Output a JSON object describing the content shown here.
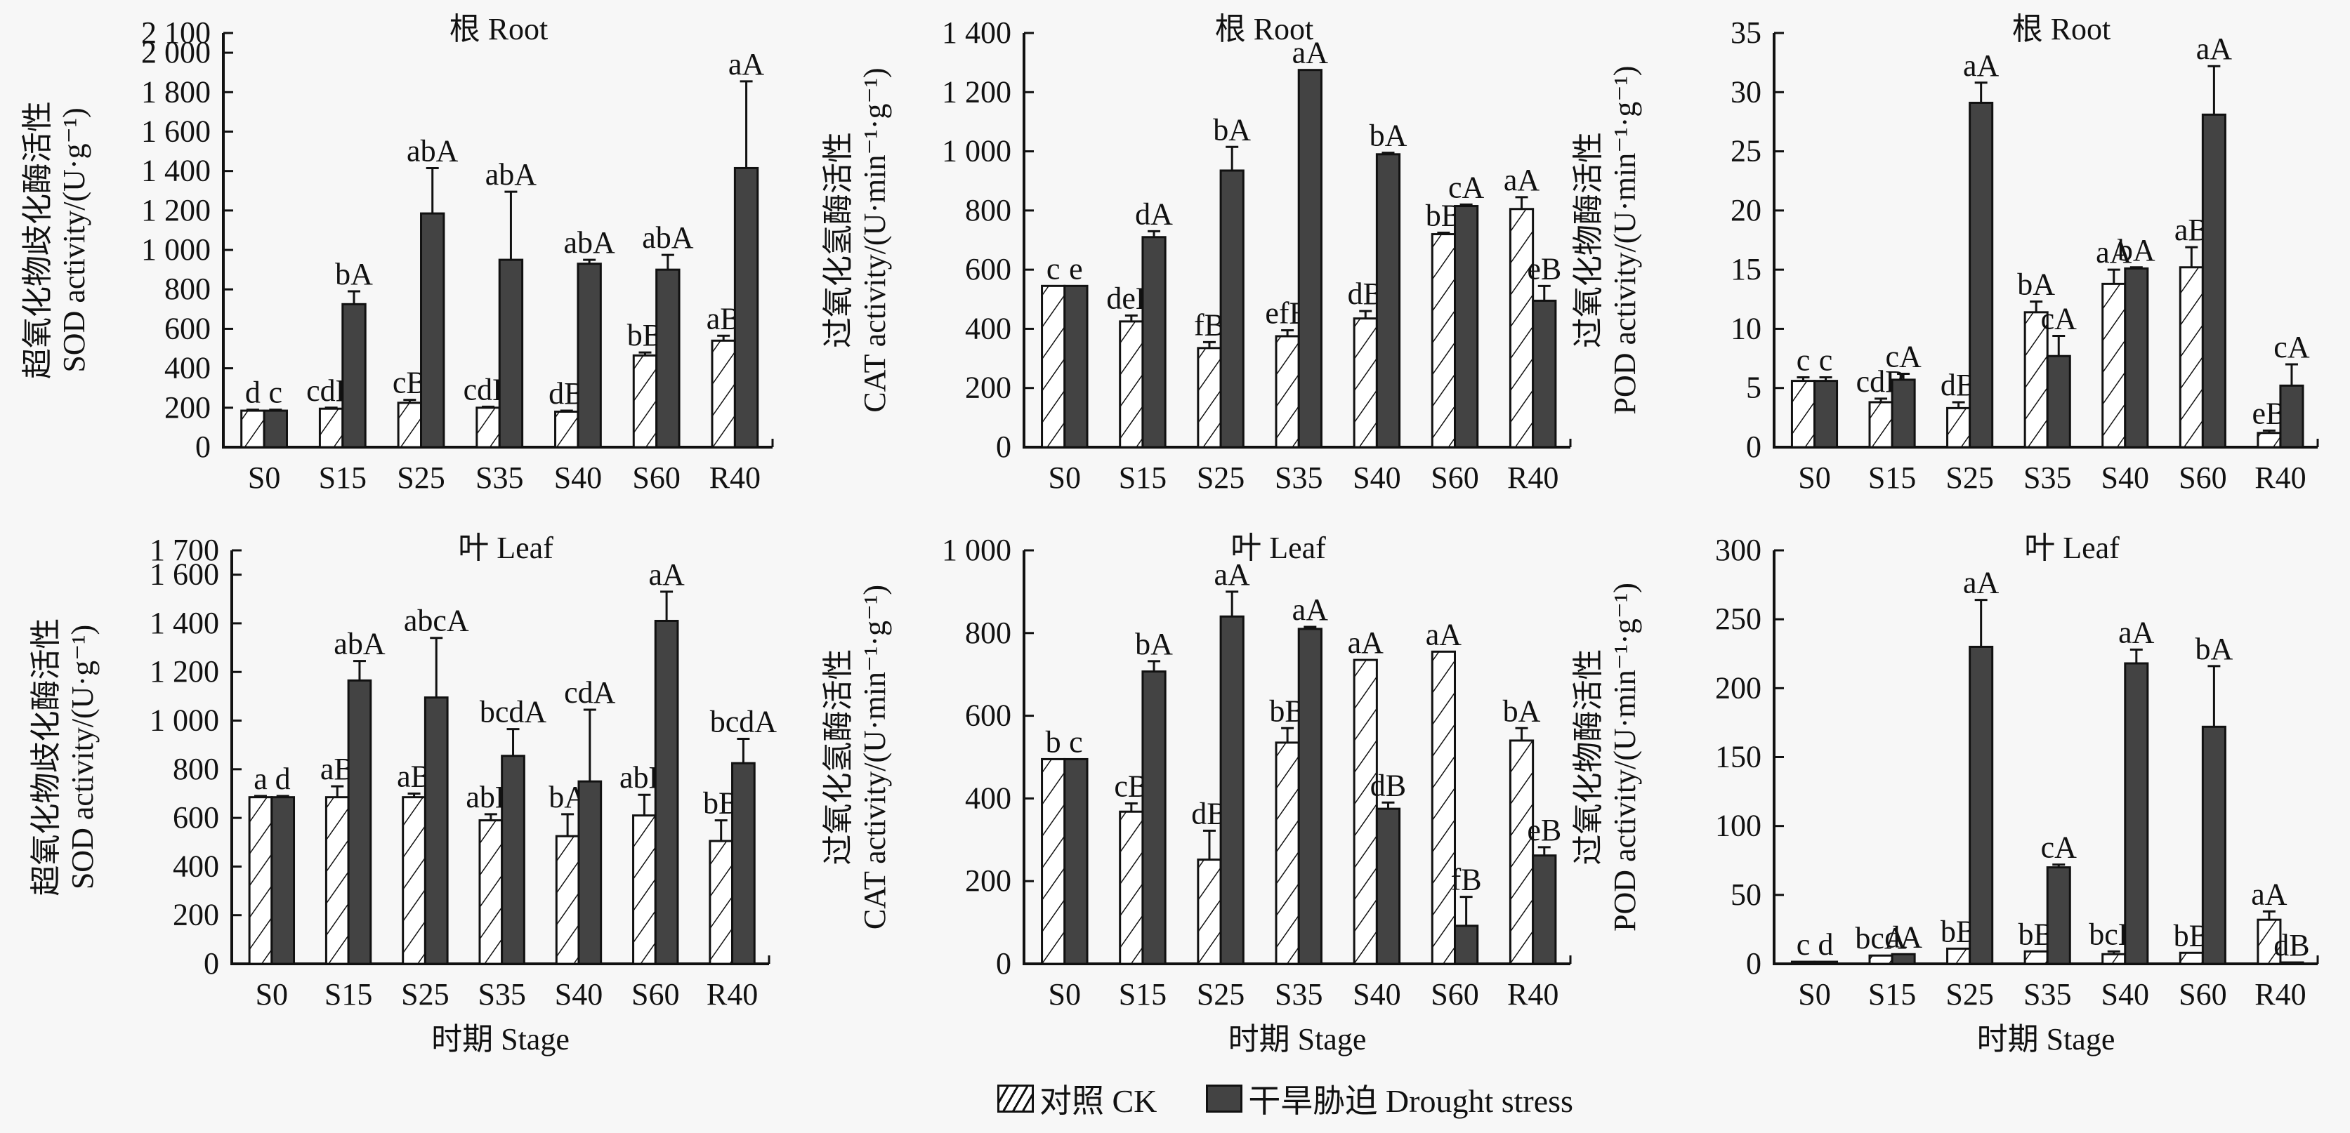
{
  "legend": {
    "ck_label": "对照 CK",
    "ds_label": "干旱胁迫 Drought stress"
  },
  "colors": {
    "drought_bar": "#434343",
    "ck_bar_fill": "#ffffff",
    "axis": "#111111",
    "background": "#f7f7f7"
  },
  "chart_data": [
    {
      "id": "sod-root",
      "type": "bar",
      "title": "根 Root",
      "ylabel_cn": "超氧化物歧化酶活性",
      "ylabel_en": "SOD activity/(U·g⁻¹)",
      "xlabel": "",
      "categories": [
        "S0",
        "S15",
        "S25",
        "S35",
        "S40",
        "S60",
        "R40"
      ],
      "ylim": [
        0,
        2100
      ],
      "yticks": [
        0,
        200,
        400,
        600,
        800,
        1000,
        1200,
        1400,
        1600,
        1800,
        2000,
        2100
      ],
      "ytick_labels": [
        "0",
        "200",
        "400",
        "600",
        "800",
        "1 000",
        "1 200",
        "1 400",
        "1 600",
        "1 800",
        "2 000",
        "2 100"
      ],
      "series": [
        {
          "name": "对照 CK",
          "values": [
            185,
            195,
            225,
            200,
            180,
            465,
            540
          ],
          "errors": [
            5,
            5,
            15,
            5,
            5,
            15,
            25
          ],
          "labels": [
            "d",
            "cdB",
            "cB",
            "cdB",
            "dB",
            "bB",
            "aB"
          ]
        },
        {
          "name": "干旱胁迫 Drought stress",
          "values": [
            185,
            725,
            1185,
            950,
            930,
            900,
            1415
          ],
          "errors": [
            5,
            65,
            230,
            345,
            20,
            75,
            440
          ],
          "labels": [
            "c",
            "bA",
            "abA",
            "abA",
            "abA",
            "abA",
            "aA"
          ]
        }
      ]
    },
    {
      "id": "cat-root",
      "type": "bar",
      "title": "根 Root",
      "ylabel_cn": "过氧化氢酶活性",
      "ylabel_en": "CAT activity/(U·min⁻¹·g⁻¹)",
      "xlabel": "",
      "categories": [
        "S0",
        "S15",
        "S25",
        "S35",
        "S40",
        "S60",
        "R40"
      ],
      "ylim": [
        0,
        1400
      ],
      "yticks": [
        0,
        200,
        400,
        600,
        800,
        1000,
        1200,
        1400
      ],
      "ytick_labels": [
        "0",
        "200",
        "400",
        "600",
        "800",
        "1 000",
        "1 200",
        "1 400"
      ],
      "series": [
        {
          "name": "对照 CK",
          "values": [
            545,
            425,
            335,
            375,
            435,
            720,
            805
          ],
          "errors": [
            0,
            20,
            20,
            20,
            25,
            5,
            40
          ],
          "labels": [
            "c",
            "deB",
            "fB",
            "efB",
            "dB",
            "bB",
            "aA"
          ]
        },
        {
          "name": "干旱胁迫 Drought stress",
          "values": [
            545,
            710,
            935,
            1275,
            990,
            815,
            495
          ],
          "errors": [
            0,
            20,
            80,
            0,
            5,
            5,
            50
          ],
          "labels": [
            "e",
            "dA",
            "bA",
            "aA",
            "bA",
            "cA",
            "eB"
          ]
        }
      ]
    },
    {
      "id": "pod-root",
      "type": "bar",
      "title": "根 Root",
      "ylabel_cn": "过氧化物酶活性",
      "ylabel_en": "POD activity/(U·min⁻¹·g⁻¹)",
      "xlabel": "",
      "categories": [
        "S0",
        "S15",
        "S25",
        "S35",
        "S40",
        "S60",
        "R40"
      ],
      "ylim": [
        0,
        35
      ],
      "yticks": [
        0,
        5,
        10,
        15,
        20,
        25,
        30,
        35
      ],
      "ytick_labels": [
        "0",
        "5",
        "10",
        "15",
        "20",
        "25",
        "30",
        "35"
      ],
      "series": [
        {
          "name": "对照 CK",
          "values": [
            5.6,
            3.8,
            3.3,
            11.4,
            13.8,
            15.2,
            1.2
          ],
          "errors": [
            0.3,
            0.3,
            0.5,
            0.9,
            1.2,
            1.7,
            0.2
          ],
          "labels": [
            "c",
            "cdB",
            "dB",
            "bA",
            "aA",
            "aB",
            "eB"
          ]
        },
        {
          "name": "干旱胁迫 Drought stress",
          "values": [
            5.6,
            5.7,
            29.1,
            7.7,
            15.1,
            28.1,
            5.2
          ],
          "errors": [
            0.3,
            0.5,
            1.7,
            1.7,
            0.1,
            4.1,
            1.8
          ],
          "labels": [
            "c",
            "cA",
            "aA",
            "cA",
            "bA",
            "aA",
            "cA"
          ]
        }
      ]
    },
    {
      "id": "sod-leaf",
      "type": "bar",
      "title": "叶 Leaf",
      "ylabel_cn": "超氧化物歧化酶活性",
      "ylabel_en": "SOD activity/(U·g⁻¹)",
      "xlabel": "时期 Stage",
      "categories": [
        "S0",
        "S15",
        "S25",
        "S35",
        "S40",
        "S60",
        "R40"
      ],
      "ylim": [
        0,
        1700
      ],
      "yticks": [
        0,
        200,
        400,
        600,
        800,
        1000,
        1200,
        1400,
        1600,
        1700
      ],
      "ytick_labels": [
        "0",
        "200",
        "400",
        "600",
        "800",
        "1 000",
        "1 200",
        "1 400",
        "1 600",
        "1 700"
      ],
      "series": [
        {
          "name": "对照 CK",
          "values": [
            685,
            685,
            685,
            590,
            525,
            610,
            505
          ],
          "errors": [
            5,
            45,
            15,
            25,
            90,
            85,
            85
          ],
          "labels": [
            "a",
            "aB",
            "aB",
            "abB",
            "bA",
            "abB",
            "bB"
          ]
        },
        {
          "name": "干旱胁迫 Drought stress",
          "values": [
            685,
            1165,
            1095,
            855,
            750,
            1410,
            825
          ],
          "errors": [
            5,
            80,
            245,
            110,
            295,
            120,
            100
          ],
          "labels": [
            "d",
            "abA",
            "abcA",
            "bcdA",
            "cdA",
            "aA",
            "bcdA"
          ]
        }
      ]
    },
    {
      "id": "cat-leaf",
      "type": "bar",
      "title": "叶 Leaf",
      "ylabel_cn": "过氧化氢酶活性",
      "ylabel_en": "CAT activity/(U·min⁻¹·g⁻¹)",
      "xlabel": "时期 Stage",
      "categories": [
        "S0",
        "S15",
        "S25",
        "S35",
        "S40",
        "S60",
        "R40"
      ],
      "ylim": [
        0,
        1000
      ],
      "yticks": [
        0,
        200,
        400,
        600,
        800,
        1000
      ],
      "ytick_labels": [
        "0",
        "200",
        "400",
        "600",
        "800",
        "1 000"
      ],
      "series": [
        {
          "name": "对照 CK",
          "values": [
            495,
            368,
            252,
            535,
            735,
            755,
            540
          ],
          "errors": [
            0,
            20,
            70,
            35,
            0,
            0,
            30
          ],
          "labels": [
            "b",
            "cB",
            "dB",
            "bB",
            "aA",
            "aA",
            "bA"
          ]
        },
        {
          "name": "干旱胁迫 Drought stress",
          "values": [
            495,
            707,
            840,
            810,
            375,
            92,
            262
          ],
          "errors": [
            0,
            25,
            60,
            5,
            15,
            70,
            20
          ],
          "labels": [
            "c",
            "bA",
            "aA",
            "aA",
            "dB",
            "fB",
            "eB"
          ]
        }
      ]
    },
    {
      "id": "pod-leaf",
      "type": "bar",
      "title": "叶 Leaf",
      "ylabel_cn": "过氧化物酶活性",
      "ylabel_en": "POD activity/(U·min⁻¹·g⁻¹)",
      "xlabel": "时期 Stage",
      "categories": [
        "S0",
        "S15",
        "S25",
        "S35",
        "S40",
        "S60",
        "R40"
      ],
      "ylim": [
        0,
        300
      ],
      "yticks": [
        0,
        50,
        100,
        150,
        200,
        250,
        300
      ],
      "ytick_labels": [
        "0",
        "50",
        "100",
        "150",
        "200",
        "250",
        "300"
      ],
      "series": [
        {
          "name": "对照 CK",
          "values": [
            1.5,
            6,
            11,
            9,
            7,
            8,
            32
          ],
          "errors": [
            0,
            0,
            0,
            0,
            2,
            0,
            6
          ],
          "labels": [
            "c",
            "bcA",
            "bB",
            "bB",
            "bcB",
            "bB",
            "aA"
          ]
        },
        {
          "name": "干旱胁迫 Drought stress",
          "values": [
            1.5,
            7,
            230,
            70,
            218,
            172,
            1
          ],
          "errors": [
            0,
            0,
            34,
            2,
            10,
            44,
            0
          ],
          "labels": [
            "d",
            "dA",
            "aA",
            "cA",
            "aA",
            "bA",
            "dB"
          ]
        }
      ]
    }
  ]
}
